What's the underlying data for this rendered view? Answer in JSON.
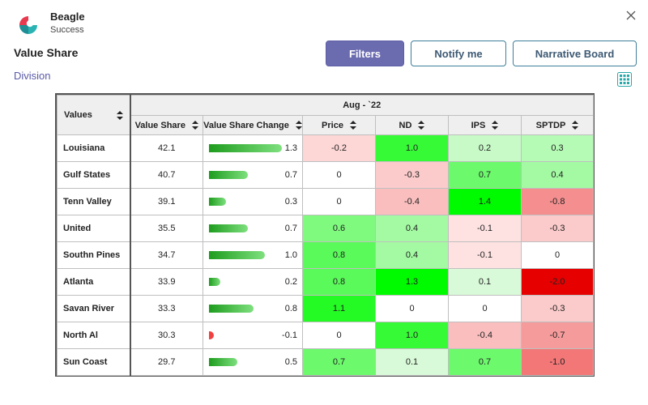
{
  "app": {
    "name": "Beagle",
    "subtitle": "Success"
  },
  "page": {
    "title": "Value Share",
    "division_link": "Division"
  },
  "buttons": {
    "filters": "Filters",
    "notify": "Notify me",
    "narrative": "Narrative Board"
  },
  "colors": {
    "accent": "#6b6bb0",
    "outline": "#3e7f9b",
    "link": "#5a5aa8"
  },
  "icons": {
    "close": "close-icon",
    "grid": "grid-icon",
    "logo": "beagle-logo"
  },
  "table": {
    "values_header": "Values",
    "period_header": "Aug - `22",
    "columns": [
      "Value Share",
      "Value Share Change",
      "Price",
      "ND",
      "IPS",
      "SPTDP"
    ],
    "rows": [
      {
        "region": "Louisiana",
        "value_share": "42.1",
        "vs_change": "1.3",
        "price": "-0.2",
        "nd": "1.0",
        "ips": "0.2",
        "sptdp": "0.3"
      },
      {
        "region": "Gulf States",
        "value_share": "40.7",
        "vs_change": "0.7",
        "price": "0",
        "nd": "-0.3",
        "ips": "0.7",
        "sptdp": "0.4"
      },
      {
        "region": "Tenn Valley",
        "value_share": "39.1",
        "vs_change": "0.3",
        "price": "0",
        "nd": "-0.4",
        "ips": "1.4",
        "sptdp": "-0.8"
      },
      {
        "region": "United",
        "value_share": "35.5",
        "vs_change": "0.7",
        "price": "0.6",
        "nd": "0.4",
        "ips": "-0.1",
        "sptdp": "-0.3"
      },
      {
        "region": "Southn Pines",
        "value_share": "34.7",
        "vs_change": "1.0",
        "price": "0.8",
        "nd": "0.4",
        "ips": "-0.1",
        "sptdp": "0"
      },
      {
        "region": "Atlanta",
        "value_share": "33.9",
        "vs_change": "0.2",
        "price": "0.8",
        "nd": "1.3",
        "ips": "0.1",
        "sptdp": "-2.0"
      },
      {
        "region": "Savan River",
        "value_share": "33.3",
        "vs_change": "0.8",
        "price": "1.1",
        "nd": "0",
        "ips": "0",
        "sptdp": "-0.3"
      },
      {
        "region": "North Al",
        "value_share": "30.3",
        "vs_change": "-0.1",
        "price": "0",
        "nd": "1.0",
        "ips": "-0.4",
        "sptdp": "-0.7"
      },
      {
        "region": "Sun Coast",
        "value_share": "29.7",
        "vs_change": "0.5",
        "price": "0.7",
        "nd": "0.1",
        "ips": "0.7",
        "sptdp": "-1.0"
      }
    ]
  }
}
